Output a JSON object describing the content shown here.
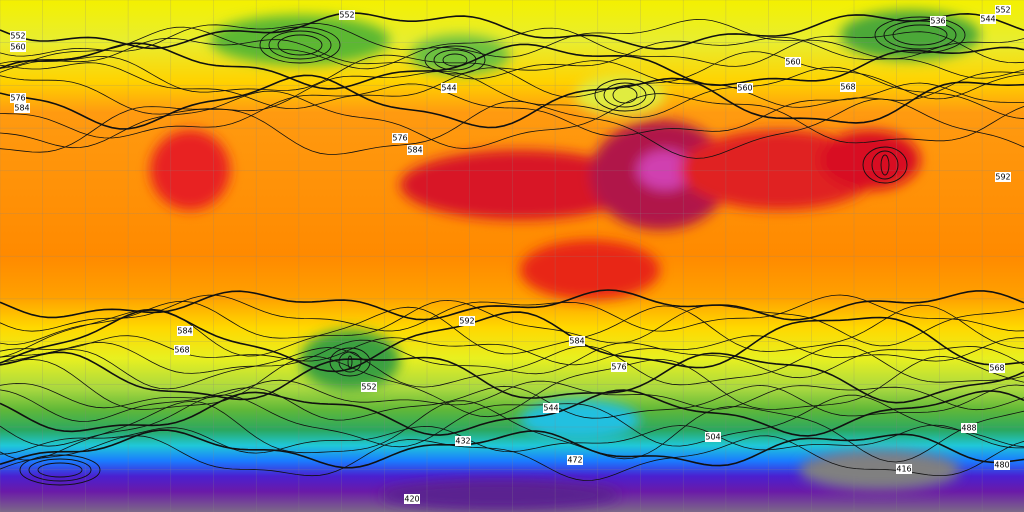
{
  "contour_labels": [
    "552",
    "560",
    "576",
    "584",
    "552",
    "552",
    "544",
    "536",
    "544",
    "560",
    "560",
    "568",
    "576",
    "584",
    "592",
    "592",
    "584",
    "568",
    "552",
    "584",
    "576",
    "568",
    "544",
    "504",
    "488",
    "480",
    "472",
    "416",
    "420",
    "432"
  ]
}
